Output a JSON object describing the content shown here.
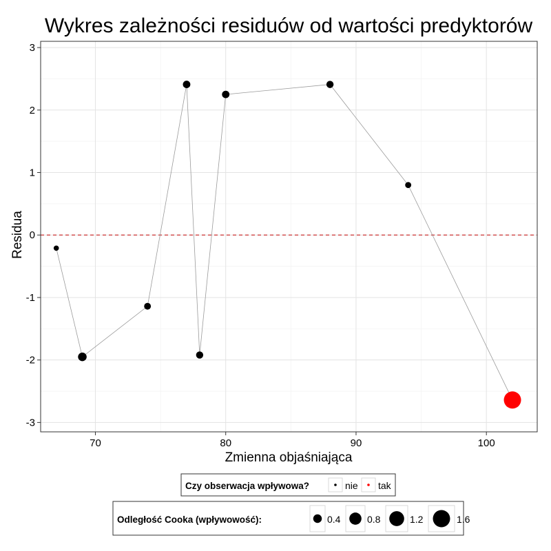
{
  "chart_data": {
    "type": "scatter",
    "title": "Wykres zależności residuów od wartości predyktorów",
    "xlabel": "Zmienna objaśniająca",
    "ylabel": "Residua",
    "xlim": [
      65.8,
      103.9
    ],
    "ylim": [
      -3.15,
      3.1
    ],
    "xticks": [
      70,
      80,
      90,
      100
    ],
    "yticks": [
      -3,
      -2,
      -1,
      0,
      1,
      2,
      3
    ],
    "grid": true,
    "connect_points": true,
    "reference_line": {
      "y": 0,
      "style": "dashed",
      "color": "#cc3333"
    },
    "points": [
      {
        "x": 67,
        "y": -0.21,
        "cook": 0.15,
        "influential": "nie"
      },
      {
        "x": 69,
        "y": -1.95,
        "cook": 0.4,
        "influential": "nie"
      },
      {
        "x": 74,
        "y": -1.14,
        "cook": 0.25,
        "influential": "nie"
      },
      {
        "x": 77,
        "y": 2.41,
        "cook": 0.3,
        "influential": "nie"
      },
      {
        "x": 78,
        "y": -1.92,
        "cook": 0.28,
        "influential": "nie"
      },
      {
        "x": 80,
        "y": 2.25,
        "cook": 0.3,
        "influential": "nie"
      },
      {
        "x": 88,
        "y": 2.41,
        "cook": 0.28,
        "influential": "nie"
      },
      {
        "x": 94,
        "y": 0.8,
        "cook": 0.2,
        "influential": "nie"
      },
      {
        "x": 102,
        "y": -2.64,
        "cook": 1.6,
        "influential": "tak"
      }
    ],
    "colors": {
      "nie": "#000000",
      "tak": "#ff0000",
      "line": "#9a9a9a"
    },
    "legend_influence": {
      "title": "Czy obserwacja wpływowa?",
      "entries": [
        {
          "label": "nie",
          "color": "#000000"
        },
        {
          "label": "tak",
          "color": "#ff0000"
        }
      ]
    },
    "legend_cook": {
      "title": "Odległość Cooka (wpływowość):",
      "entries": [
        {
          "label": "0.4",
          "value": 0.4
        },
        {
          "label": "0.8",
          "value": 0.8
        },
        {
          "label": "1.2",
          "value": 1.2
        },
        {
          "label": "1.6",
          "value": 1.6
        }
      ]
    },
    "legend_position": "bottom"
  }
}
